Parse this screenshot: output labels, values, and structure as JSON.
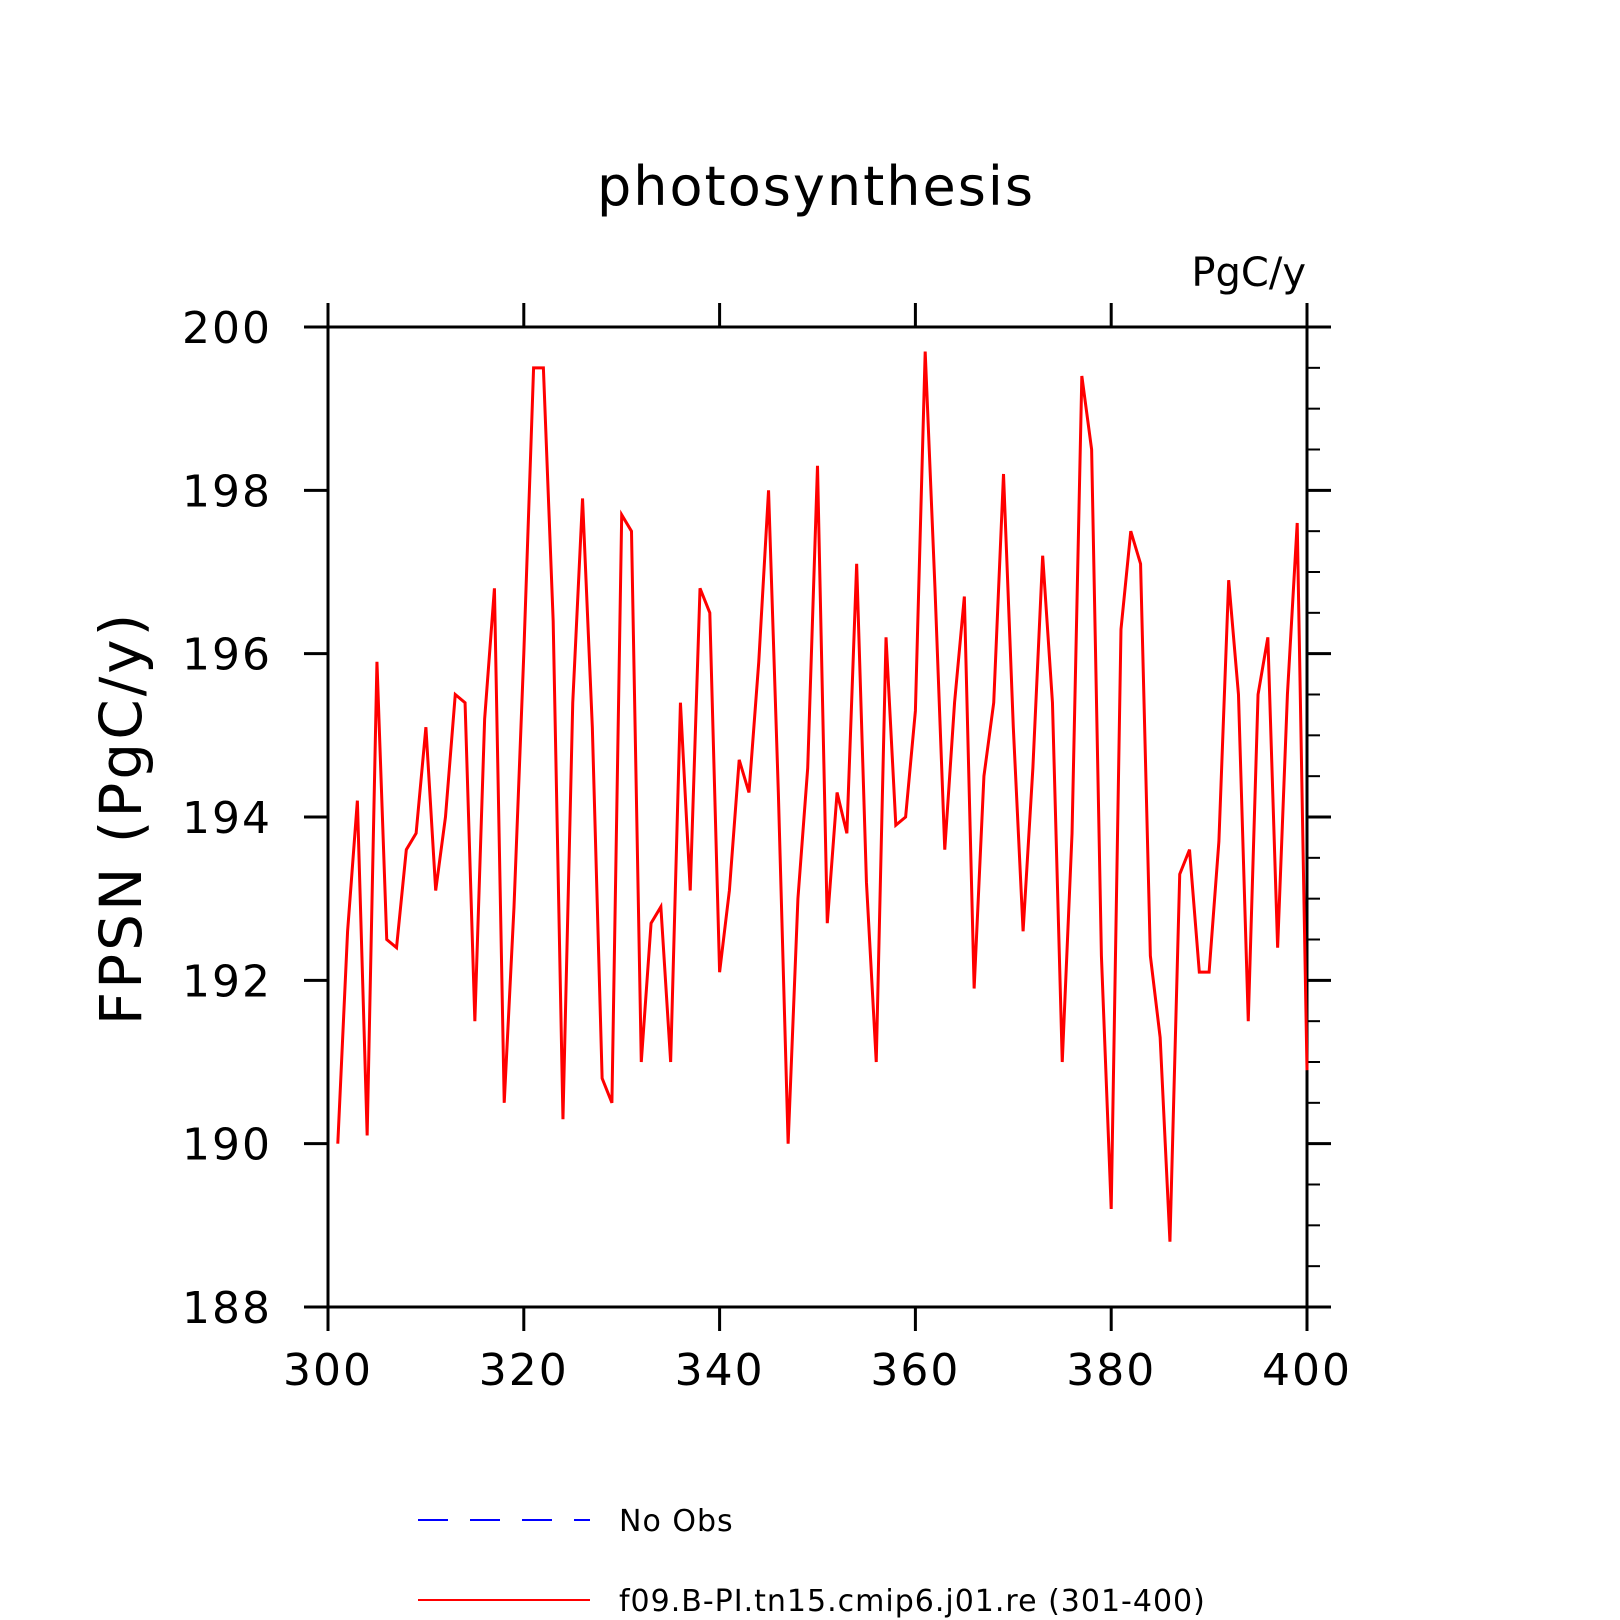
{
  "chart_data": {
    "type": "line",
    "title": "photosynthesis",
    "units_label": "PgC/y",
    "ylabel": "FPSN  (PgC/y)",
    "xlabel": "",
    "xlim": [
      300,
      400
    ],
    "ylim": [
      188,
      200
    ],
    "x_ticks": [
      "300",
      "320",
      "340",
      "360",
      "380",
      "400"
    ],
    "y_ticks": [
      "188",
      "190",
      "192",
      "194",
      "196",
      "198",
      "200"
    ],
    "grid": false,
    "legend_position": "bottom-center",
    "series": [
      {
        "name": "No Obs",
        "color": "#0000ff",
        "style": "dashed",
        "x": [],
        "values": []
      },
      {
        "name": "f09.B-PI.tn15.cmip6.j01.re (301-400)",
        "color": "#ff0000",
        "style": "solid",
        "x": [
          301,
          302,
          303,
          304,
          305,
          306,
          307,
          308,
          309,
          310,
          311,
          312,
          313,
          314,
          315,
          316,
          317,
          318,
          319,
          320,
          321,
          322,
          323,
          324,
          325,
          326,
          327,
          328,
          329,
          330,
          331,
          332,
          333,
          334,
          335,
          336,
          337,
          338,
          339,
          340,
          341,
          342,
          343,
          344,
          345,
          346,
          347,
          348,
          349,
          350,
          351,
          352,
          353,
          354,
          355,
          356,
          357,
          358,
          359,
          360,
          361,
          362,
          363,
          364,
          365,
          366,
          367,
          368,
          369,
          370,
          371,
          372,
          373,
          374,
          375,
          376,
          377,
          378,
          379,
          380,
          381,
          382,
          383,
          384,
          385,
          386,
          387,
          388,
          389,
          390,
          391,
          392,
          393,
          394,
          395,
          396,
          397,
          398,
          399,
          400
        ],
        "values": [
          190.0,
          192.6,
          194.2,
          190.1,
          195.9,
          192.5,
          192.4,
          193.6,
          193.8,
          195.1,
          193.1,
          194.0,
          195.5,
          195.4,
          191.5,
          195.2,
          196.8,
          190.5,
          192.9,
          196.0,
          199.5,
          199.5,
          196.4,
          190.3,
          195.4,
          197.9,
          195.1,
          190.8,
          190.5,
          197.7,
          197.5,
          191.0,
          192.7,
          192.9,
          191.0,
          195.4,
          193.1,
          196.8,
          196.5,
          192.1,
          193.1,
          194.7,
          194.3,
          195.9,
          198.0,
          194.3,
          190.0,
          193.0,
          194.6,
          198.3,
          192.7,
          194.3,
          193.8,
          197.1,
          193.2,
          191.0,
          196.2,
          193.9,
          194.0,
          195.3,
          199.7,
          196.8,
          193.6,
          195.4,
          196.7,
          191.9,
          194.5,
          195.4,
          198.2,
          195.1,
          192.6,
          194.6,
          197.2,
          195.4,
          191.0,
          193.8,
          199.4,
          198.5,
          192.3,
          189.2,
          196.3,
          197.5,
          197.1,
          192.3,
          191.3,
          188.8,
          193.3,
          193.6,
          192.1,
          192.1,
          193.7,
          196.9,
          195.5,
          191.5,
          195.5,
          196.2,
          192.4,
          195.5,
          197.6,
          190.9
        ]
      }
    ]
  }
}
